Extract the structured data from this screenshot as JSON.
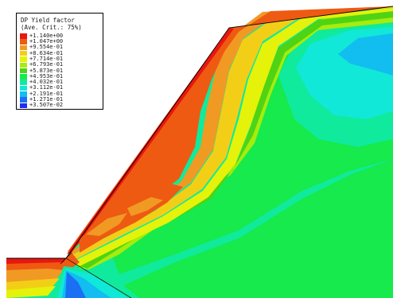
{
  "legend": {
    "title": "DP Yield factor",
    "subtitle": "(Ave. Crit.: 75%)",
    "entries": [
      {
        "label": "+1.140e+00",
        "color": "#e8170f"
      },
      {
        "label": "+1.047e+00",
        "color": "#ee5a12"
      },
      {
        "label": "+9.554e-01",
        "color": "#f09a24"
      },
      {
        "label": "+8.634e-01",
        "color": "#f2cf16"
      },
      {
        "label": "+7.714e-01",
        "color": "#e5f20a"
      },
      {
        "label": "+6.793e-01",
        "color": "#a6ec0c"
      },
      {
        "label": "+5.873e-01",
        "color": "#4ed414"
      },
      {
        "label": "+4.953e-01",
        "color": "#16ea4c"
      },
      {
        "label": "+4.032e-01",
        "color": "#10ea9c"
      },
      {
        "label": "+3.112e-01",
        "color": "#11e8d8"
      },
      {
        "label": "+2.191e-01",
        "color": "#12bdf0"
      },
      {
        "label": "+1.271e-01",
        "color": "#1a6ff2"
      },
      {
        "label": "+3.507e-02",
        "color": "#1c2ff0"
      }
    ]
  },
  "contour": {
    "colors": {
      "red": "#e8170f",
      "orange": "#ee5a12",
      "light_orange": "#f09a24",
      "yellow": "#f2cf16",
      "yellow_green": "#e5f20a",
      "lime": "#a6ec0c",
      "green": "#4ed414",
      "bright_green": "#16ea4c",
      "sea_green": "#10ea9c",
      "cyan": "#11e8d8",
      "sky_blue": "#12bdf0",
      "blue": "#1a6ff2"
    }
  }
}
